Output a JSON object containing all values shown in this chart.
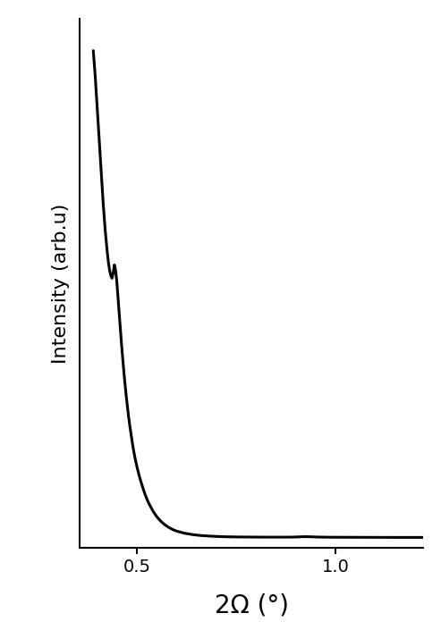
{
  "xlabel": "2Ω (°)",
  "ylabel": "Intensity (arb.u)",
  "line_color": "#000000",
  "line_width": 2.2,
  "background_color": "#ffffff",
  "xlim": [
    0.355,
    1.22
  ],
  "ylim": [
    0,
    10000
  ],
  "xticks": [
    0.5,
    1.0
  ],
  "xtick_labels": [
    "0.5",
    "1.0"
  ],
  "xlabel_fontsize": 20,
  "ylabel_fontsize": 16,
  "tick_fontsize": 14,
  "curve_x": [
    0.39,
    0.395,
    0.4,
    0.405,
    0.41,
    0.415,
    0.42,
    0.425,
    0.428,
    0.431,
    0.434,
    0.437,
    0.44,
    0.443,
    0.446,
    0.449,
    0.452,
    0.455,
    0.458,
    0.461,
    0.464,
    0.467,
    0.47,
    0.473,
    0.476,
    0.479,
    0.482,
    0.486,
    0.49,
    0.495,
    0.5,
    0.505,
    0.51,
    0.515,
    0.52,
    0.525,
    0.53,
    0.54,
    0.55,
    0.56,
    0.57,
    0.58,
    0.59,
    0.6,
    0.62,
    0.64,
    0.66,
    0.68,
    0.7,
    0.72,
    0.74,
    0.76,
    0.78,
    0.8,
    0.82,
    0.84,
    0.86,
    0.88,
    0.89,
    0.9,
    0.91,
    0.92,
    0.93,
    0.94,
    0.95,
    0.96,
    0.98,
    1.0,
    1.05,
    1.1,
    1.15,
    1.2,
    1.22
  ],
  "curve_y": [
    9400,
    8900,
    8300,
    7700,
    7100,
    6500,
    6000,
    5600,
    5400,
    5250,
    5150,
    5100,
    5200,
    5350,
    5250,
    5050,
    4750,
    4450,
    4150,
    3850,
    3580,
    3320,
    3080,
    2860,
    2660,
    2470,
    2300,
    2100,
    1900,
    1700,
    1530,
    1380,
    1250,
    1130,
    1020,
    925,
    840,
    700,
    590,
    505,
    440,
    390,
    350,
    320,
    280,
    255,
    238,
    228,
    220,
    215,
    212,
    210,
    209,
    208,
    207,
    207,
    207,
    207,
    208,
    210,
    213,
    216,
    215,
    213,
    210,
    208,
    206,
    205,
    204,
    203,
    202,
    202,
    202
  ]
}
